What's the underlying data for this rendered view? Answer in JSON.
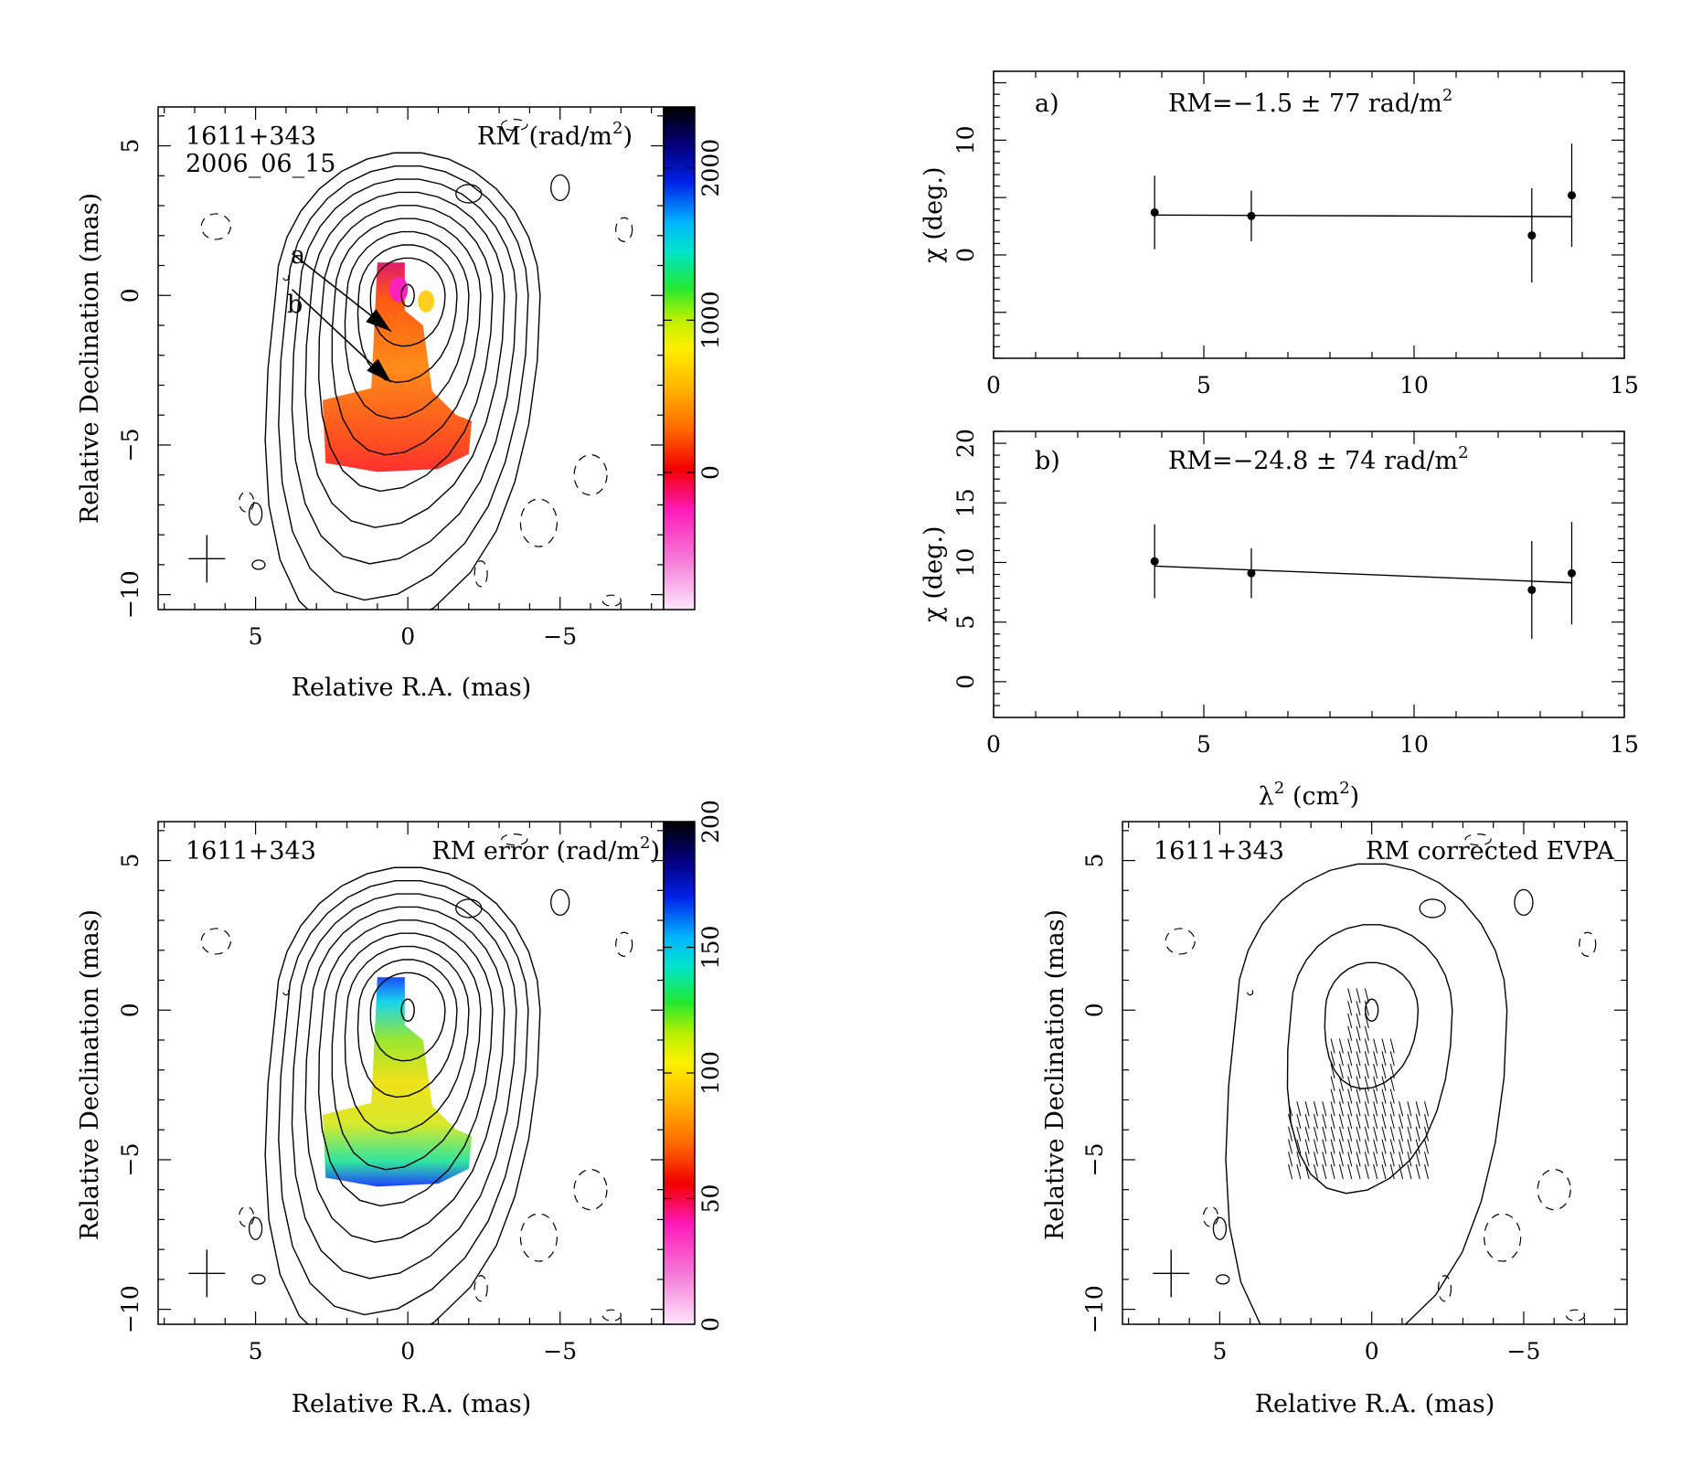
{
  "chart_data": [
    {
      "id": "map-rm",
      "type": "heatmap",
      "labels": [
        "1611+343",
        "2006_06_15",
        "RM (rad/m",
        "2",
        ")"
      ],
      "point_labels": [
        "a",
        "b"
      ],
      "xlabel": "Relative R.A. (mas)",
      "ylabel": "Relative Declination (mas)",
      "xlim": [
        8.2,
        -8.4
      ],
      "ylim": [
        -10.5,
        6.3
      ],
      "xticks": [
        5,
        0,
        -5
      ],
      "xtick_labels": [
        "5",
        "0",
        "−5"
      ],
      "yticks": [
        5,
        0,
        -5,
        -10
      ],
      "ytick_labels": [
        "5",
        "0",
        "−5",
        "−10"
      ],
      "colorbar": {
        "range": [
          -900,
          2400
        ],
        "ticks": [
          0,
          1000,
          2000
        ],
        "tick_labels": [
          "0",
          "1000",
          "2000"
        ],
        "colormap": "pink-red-orange-yellow-green-cyan-blue-black"
      },
      "arrows": [
        {
          "label": "a",
          "from": [
            3.8,
            1.4
          ],
          "to": [
            0.55,
            -1.2
          ]
        },
        {
          "label": "b",
          "from": [
            3.8,
            0.2
          ],
          "to": [
            0.55,
            -2.9
          ]
        }
      ],
      "beam_marker": [
        6.6,
        -8.8
      ]
    },
    {
      "id": "fit-a",
      "type": "scatter",
      "panel_label": "a)",
      "annotation": [
        "RM=−1.5 ± 77 rad/m",
        "2"
      ],
      "xlim": [
        0,
        15
      ],
      "ylim": [
        -9,
        16
      ],
      "xticks": [
        0,
        5,
        10,
        15
      ],
      "xtick_labels": [
        "0",
        "5",
        "10",
        "15"
      ],
      "yticks": [
        0,
        10
      ],
      "ytick_labels": [
        "0",
        "10"
      ],
      "ylabel": "χ (deg.)",
      "points": [
        {
          "x": 3.83,
          "y": 3.7,
          "err": 3.2
        },
        {
          "x": 6.13,
          "y": 3.4,
          "err": 2.2
        },
        {
          "x": 12.8,
          "y": 1.7,
          "err": 4.1
        },
        {
          "x": 13.75,
          "y": 5.2,
          "err": 4.5
        }
      ],
      "fit_line": {
        "x": [
          3.83,
          13.75
        ],
        "y": [
          3.48,
          3.34
        ]
      }
    },
    {
      "id": "fit-b",
      "type": "scatter",
      "panel_label": "b)",
      "annotation": [
        "RM=−24.8 ± 74 rad/m",
        "2"
      ],
      "xlim": [
        0,
        15
      ],
      "ylim": [
        -3,
        21
      ],
      "xticks": [
        0,
        5,
        10,
        15
      ],
      "xtick_labels": [
        "0",
        "5",
        "10",
        "15"
      ],
      "yticks": [
        0,
        5,
        10,
        15,
        20
      ],
      "ytick_labels": [
        "0",
        "5",
        "10",
        "15",
        "20"
      ],
      "ylabel": "χ (deg.)",
      "xlabel": [
        "λ",
        "2",
        " (cm",
        "2",
        ")"
      ],
      "points": [
        {
          "x": 3.83,
          "y": 10.1,
          "err": 3.1
        },
        {
          "x": 6.13,
          "y": 9.1,
          "err": 2.1
        },
        {
          "x": 12.8,
          "y": 7.7,
          "err": 4.1
        },
        {
          "x": 13.75,
          "y": 9.1,
          "err": 4.3
        }
      ],
      "fit_line": {
        "x": [
          3.83,
          13.75
        ],
        "y": [
          9.7,
          8.3
        ]
      }
    },
    {
      "id": "map-rmerr",
      "type": "heatmap",
      "labels": [
        "1611+343",
        "RM error (rad/m",
        "2",
        ")"
      ],
      "xlabel": "Relative R.A. (mas)",
      "ylabel": "Relative Declination (mas)",
      "xlim": [
        8.2,
        -8.4
      ],
      "ylim": [
        -10.5,
        6.3
      ],
      "xticks": [
        5,
        0,
        -5
      ],
      "xtick_labels": [
        "5",
        "0",
        "−5"
      ],
      "yticks": [
        5,
        0,
        -5,
        -10
      ],
      "ytick_labels": [
        "5",
        "0",
        "−5",
        "−10"
      ],
      "colorbar": {
        "range": [
          0,
          200
        ],
        "ticks": [
          0,
          50,
          100,
          150,
          200
        ],
        "tick_labels": [
          "0",
          "50",
          "100",
          "150",
          "200"
        ],
        "colormap": "pink-red-orange-yellow-green-cyan-blue-black"
      },
      "beam_marker": [
        6.6,
        -8.8
      ]
    },
    {
      "id": "map-evpa",
      "type": "heatmap",
      "labels": [
        "1611+343",
        "RM corrected EVPA"
      ],
      "xlabel": "Relative R.A. (mas)",
      "ylabel": "Relative Declination (mas)",
      "xlim": [
        8.2,
        -8.4
      ],
      "ylim": [
        -10.5,
        6.3
      ],
      "xticks": [
        5,
        0,
        -5
      ],
      "xtick_labels": [
        "5",
        "0",
        "−5"
      ],
      "yticks": [
        5,
        0,
        -5,
        -10
      ],
      "ytick_labels": [
        "5",
        "0",
        "−5",
        "−10"
      ],
      "beam_marker": [
        6.6,
        -8.8
      ]
    }
  ]
}
